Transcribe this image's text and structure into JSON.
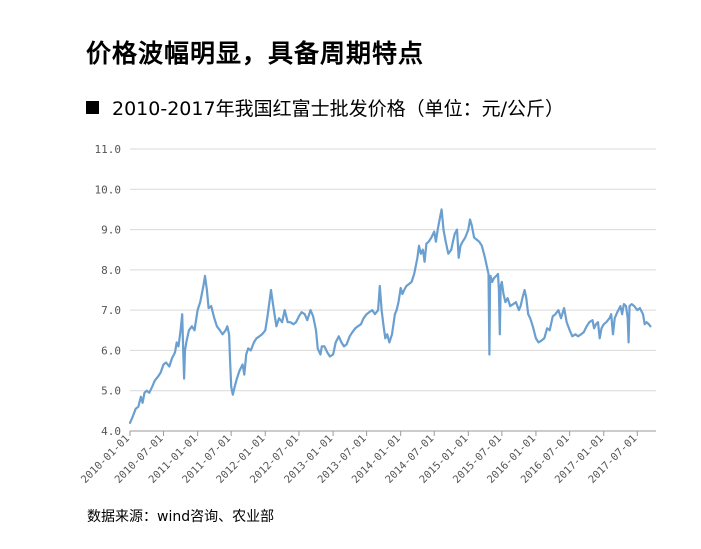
{
  "headline": "价格波幅明显，具备周期特点",
  "chart_data": {
    "type": "line",
    "title": "2010-2017年我国红富士批发价格（单位：元/公斤）",
    "ylim": [
      4.0,
      11.0
    ],
    "yticks": [
      "4.0",
      "5.0",
      "6.0",
      "7.0",
      "8.0",
      "9.0",
      "10.0",
      "11.0"
    ],
    "xticks": [
      "2010-01-01",
      "2010-07-01",
      "2011-01-01",
      "2011-07-01",
      "2012-01-01",
      "2012-07-01",
      "2013-01-01",
      "2013-07-01",
      "2014-01-01",
      "2014-07-01",
      "2015-01-01",
      "2015-07-01",
      "2016-01-01",
      "2016-07-01",
      "2017-01-01",
      "2017-07-01"
    ],
    "grid": "horizontal",
    "line_color": "#6a9fd0",
    "series": [
      {
        "points": [
          [
            "2010-01-01",
            4.2
          ],
          [
            "2010-01-15",
            4.35
          ],
          [
            "2010-02-01",
            4.55
          ],
          [
            "2010-02-15",
            4.6
          ],
          [
            "2010-03-01",
            4.85
          ],
          [
            "2010-03-10",
            4.7
          ],
          [
            "2010-03-20",
            4.95
          ],
          [
            "2010-04-01",
            5.0
          ],
          [
            "2010-04-15",
            4.95
          ],
          [
            "2010-05-01",
            5.1
          ],
          [
            "2010-05-15",
            5.25
          ],
          [
            "2010-06-01",
            5.35
          ],
          [
            "2010-06-15",
            5.45
          ],
          [
            "2010-07-01",
            5.65
          ],
          [
            "2010-07-15",
            5.7
          ],
          [
            "2010-08-01",
            5.6
          ],
          [
            "2010-08-15",
            5.8
          ],
          [
            "2010-09-01",
            5.95
          ],
          [
            "2010-09-10",
            6.2
          ],
          [
            "2010-09-20",
            6.1
          ],
          [
            "2010-10-01",
            6.5
          ],
          [
            "2010-10-10",
            6.9
          ],
          [
            "2010-10-15",
            6.0
          ],
          [
            "2010-10-20",
            5.3
          ],
          [
            "2010-10-25",
            6.0
          ],
          [
            "2010-11-01",
            6.2
          ],
          [
            "2010-11-15",
            6.5
          ],
          [
            "2010-12-01",
            6.6
          ],
          [
            "2010-12-15",
            6.5
          ],
          [
            "2011-01-01",
            7.0
          ],
          [
            "2011-01-15",
            7.2
          ],
          [
            "2011-02-01",
            7.6
          ],
          [
            "2011-02-10",
            7.85
          ],
          [
            "2011-02-20",
            7.5
          ],
          [
            "2011-03-01",
            7.05
          ],
          [
            "2011-03-15",
            7.1
          ],
          [
            "2011-04-01",
            6.8
          ],
          [
            "2011-04-15",
            6.6
          ],
          [
            "2011-05-01",
            6.5
          ],
          [
            "2011-05-15",
            6.4
          ],
          [
            "2011-06-01",
            6.5
          ],
          [
            "2011-06-10",
            6.6
          ],
          [
            "2011-06-20",
            6.4
          ],
          [
            "2011-06-25",
            5.8
          ],
          [
            "2011-07-01",
            5.1
          ],
          [
            "2011-07-10",
            4.9
          ],
          [
            "2011-07-20",
            5.1
          ],
          [
            "2011-08-01",
            5.3
          ],
          [
            "2011-08-15",
            5.5
          ],
          [
            "2011-09-01",
            5.65
          ],
          [
            "2011-09-10",
            5.4
          ],
          [
            "2011-09-20",
            5.9
          ],
          [
            "2011-10-01",
            6.05
          ],
          [
            "2011-10-15",
            6.0
          ],
          [
            "2011-11-01",
            6.2
          ],
          [
            "2011-11-15",
            6.3
          ],
          [
            "2011-12-01",
            6.35
          ],
          [
            "2011-12-15",
            6.4
          ],
          [
            "2012-01-01",
            6.5
          ],
          [
            "2012-01-15",
            6.9
          ],
          [
            "2012-02-01",
            7.5
          ],
          [
            "2012-02-10",
            7.2
          ],
          [
            "2012-02-20",
            6.9
          ],
          [
            "2012-03-01",
            6.6
          ],
          [
            "2012-03-15",
            6.8
          ],
          [
            "2012-04-01",
            6.7
          ],
          [
            "2012-04-15",
            7.0
          ],
          [
            "2012-05-01",
            6.7
          ],
          [
            "2012-05-15",
            6.7
          ],
          [
            "2012-06-01",
            6.65
          ],
          [
            "2012-06-15",
            6.7
          ],
          [
            "2012-07-01",
            6.85
          ],
          [
            "2012-07-15",
            6.95
          ],
          [
            "2012-08-01",
            6.9
          ],
          [
            "2012-08-15",
            6.75
          ],
          [
            "2012-09-01",
            7.0
          ],
          [
            "2012-09-15",
            6.85
          ],
          [
            "2012-10-01",
            6.5
          ],
          [
            "2012-10-10",
            6.05
          ],
          [
            "2012-10-25",
            5.9
          ],
          [
            "2012-11-01",
            6.1
          ],
          [
            "2012-11-15",
            6.1
          ],
          [
            "2012-12-01",
            5.95
          ],
          [
            "2012-12-15",
            5.85
          ],
          [
            "2013-01-01",
            5.9
          ],
          [
            "2013-01-15",
            6.2
          ],
          [
            "2013-02-01",
            6.35
          ],
          [
            "2013-02-15",
            6.2
          ],
          [
            "2013-03-01",
            6.1
          ],
          [
            "2013-03-15",
            6.15
          ],
          [
            "2013-04-01",
            6.35
          ],
          [
            "2013-04-15",
            6.45
          ],
          [
            "2013-05-01",
            6.55
          ],
          [
            "2013-05-15",
            6.6
          ],
          [
            "2013-06-01",
            6.65
          ],
          [
            "2013-06-15",
            6.8
          ],
          [
            "2013-07-01",
            6.9
          ],
          [
            "2013-07-15",
            6.95
          ],
          [
            "2013-08-01",
            7.0
          ],
          [
            "2013-08-15",
            6.9
          ],
          [
            "2013-09-01",
            7.0
          ],
          [
            "2013-09-10",
            7.6
          ],
          [
            "2013-09-20",
            7.0
          ],
          [
            "2013-10-01",
            6.6
          ],
          [
            "2013-10-10",
            6.3
          ],
          [
            "2013-10-20",
            6.4
          ],
          [
            "2013-11-01",
            6.2
          ],
          [
            "2013-11-15",
            6.4
          ],
          [
            "2013-12-01",
            6.9
          ],
          [
            "2013-12-10",
            7.0
          ],
          [
            "2013-12-20",
            7.2
          ],
          [
            "2014-01-01",
            7.55
          ],
          [
            "2014-01-10",
            7.4
          ],
          [
            "2014-01-20",
            7.5
          ],
          [
            "2014-02-01",
            7.6
          ],
          [
            "2014-02-15",
            7.65
          ],
          [
            "2014-03-01",
            7.7
          ],
          [
            "2014-03-15",
            7.9
          ],
          [
            "2014-04-01",
            8.3
          ],
          [
            "2014-04-10",
            8.6
          ],
          [
            "2014-04-20",
            8.4
          ],
          [
            "2014-05-01",
            8.5
          ],
          [
            "2014-05-10",
            8.2
          ],
          [
            "2014-05-20",
            8.65
          ],
          [
            "2014-06-01",
            8.7
          ],
          [
            "2014-06-15",
            8.8
          ],
          [
            "2014-07-01",
            8.95
          ],
          [
            "2014-07-10",
            8.7
          ],
          [
            "2014-07-20",
            9.0
          ],
          [
            "2014-08-01",
            9.3
          ],
          [
            "2014-08-10",
            9.5
          ],
          [
            "2014-08-20",
            9.0
          ],
          [
            "2014-09-01",
            8.7
          ],
          [
            "2014-09-15",
            8.4
          ],
          [
            "2014-10-01",
            8.5
          ],
          [
            "2014-10-10",
            8.7
          ],
          [
            "2014-10-20",
            8.9
          ],
          [
            "2014-11-01",
            9.0
          ],
          [
            "2014-11-10",
            8.3
          ],
          [
            "2014-11-20",
            8.6
          ],
          [
            "2014-12-01",
            8.7
          ],
          [
            "2014-12-15",
            8.8
          ],
          [
            "2015-01-01",
            9.0
          ],
          [
            "2015-01-10",
            9.25
          ],
          [
            "2015-01-20",
            9.1
          ],
          [
            "2015-02-01",
            8.8
          ],
          [
            "2015-02-15",
            8.75
          ],
          [
            "2015-03-01",
            8.7
          ],
          [
            "2015-03-15",
            8.6
          ],
          [
            "2015-04-01",
            8.3
          ],
          [
            "2015-04-10",
            8.1
          ],
          [
            "2015-04-20",
            7.9
          ],
          [
            "2015-04-25",
            5.9
          ],
          [
            "2015-04-28",
            7.6
          ],
          [
            "2015-05-01",
            7.85
          ],
          [
            "2015-05-10",
            7.7
          ],
          [
            "2015-05-20",
            7.8
          ],
          [
            "2015-06-01",
            7.85
          ],
          [
            "2015-06-10",
            7.9
          ],
          [
            "2015-06-15",
            7.5
          ],
          [
            "2015-06-20",
            6.4
          ],
          [
            "2015-06-25",
            7.6
          ],
          [
            "2015-07-01",
            7.7
          ],
          [
            "2015-07-10",
            7.4
          ],
          [
            "2015-07-20",
            7.2
          ],
          [
            "2015-08-01",
            7.3
          ],
          [
            "2015-08-15",
            7.1
          ],
          [
            "2015-09-01",
            7.15
          ],
          [
            "2015-09-15",
            7.2
          ],
          [
            "2015-10-01",
            7.0
          ],
          [
            "2015-10-10",
            7.1
          ],
          [
            "2015-10-20",
            7.3
          ],
          [
            "2015-11-01",
            7.5
          ],
          [
            "2015-11-10",
            7.3
          ],
          [
            "2015-11-20",
            6.9
          ],
          [
            "2015-12-01",
            6.8
          ],
          [
            "2015-12-15",
            6.6
          ],
          [
            "2016-01-01",
            6.3
          ],
          [
            "2016-01-15",
            6.2
          ],
          [
            "2016-02-01",
            6.25
          ],
          [
            "2016-02-15",
            6.3
          ],
          [
            "2016-03-01",
            6.55
          ],
          [
            "2016-03-15",
            6.5
          ],
          [
            "2016-04-01",
            6.85
          ],
          [
            "2016-04-15",
            6.9
          ],
          [
            "2016-05-01",
            7.0
          ],
          [
            "2016-05-15",
            6.8
          ],
          [
            "2016-06-01",
            7.05
          ],
          [
            "2016-06-15",
            6.7
          ],
          [
            "2016-07-01",
            6.5
          ],
          [
            "2016-07-15",
            6.35
          ],
          [
            "2016-08-01",
            6.4
          ],
          [
            "2016-08-15",
            6.35
          ],
          [
            "2016-09-01",
            6.4
          ],
          [
            "2016-09-15",
            6.45
          ],
          [
            "2016-10-01",
            6.6
          ],
          [
            "2016-10-15",
            6.7
          ],
          [
            "2016-11-01",
            6.75
          ],
          [
            "2016-11-10",
            6.55
          ],
          [
            "2016-11-20",
            6.65
          ],
          [
            "2016-12-01",
            6.7
          ],
          [
            "2016-12-10",
            6.3
          ],
          [
            "2016-12-20",
            6.55
          ],
          [
            "2017-01-01",
            6.65
          ],
          [
            "2017-01-15",
            6.7
          ],
          [
            "2017-02-01",
            6.8
          ],
          [
            "2017-02-10",
            6.9
          ],
          [
            "2017-02-20",
            6.4
          ],
          [
            "2017-03-01",
            6.8
          ],
          [
            "2017-03-15",
            6.95
          ],
          [
            "2017-04-01",
            7.1
          ],
          [
            "2017-04-10",
            6.9
          ],
          [
            "2017-04-20",
            7.15
          ],
          [
            "2017-05-01",
            7.1
          ],
          [
            "2017-05-10",
            6.8
          ],
          [
            "2017-05-15",
            6.2
          ],
          [
            "2017-05-20",
            7.1
          ],
          [
            "2017-06-01",
            7.15
          ],
          [
            "2017-06-15",
            7.1
          ],
          [
            "2017-07-01",
            7.0
          ],
          [
            "2017-07-15",
            7.05
          ],
          [
            "2017-08-01",
            6.9
          ],
          [
            "2017-08-10",
            6.65
          ],
          [
            "2017-08-20",
            6.7
          ],
          [
            "2017-09-01",
            6.65
          ],
          [
            "2017-09-10",
            6.6
          ]
        ]
      }
    ]
  },
  "source": "数据来源：wind咨询、农业部"
}
